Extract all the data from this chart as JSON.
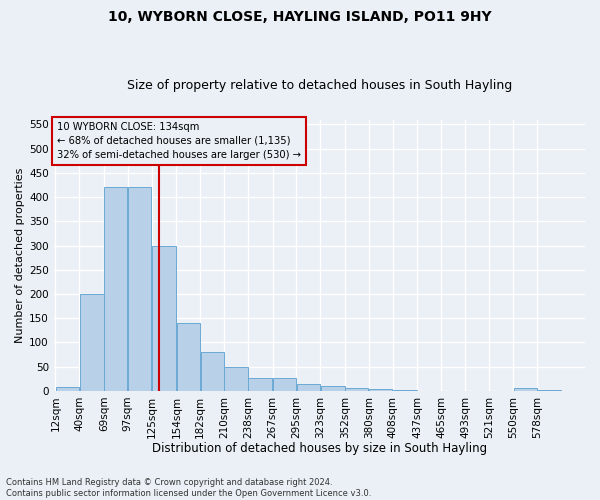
{
  "title": "10, WYBORN CLOSE, HAYLING ISLAND, PO11 9HY",
  "subtitle": "Size of property relative to detached houses in South Hayling",
  "xlabel": "Distribution of detached houses by size in South Hayling",
  "ylabel": "Number of detached properties",
  "footnote1": "Contains HM Land Registry data © Crown copyright and database right 2024.",
  "footnote2": "Contains public sector information licensed under the Open Government Licence v3.0.",
  "annotation_line1": "10 WYBORN CLOSE: 134sqm",
  "annotation_line2": "← 68% of detached houses are smaller (1,135)",
  "annotation_line3": "32% of semi-detached houses are larger (530) →",
  "bar_color": "#b8d0e8",
  "bar_edge_color": "#6aaad4",
  "vline_color": "#cc0000",
  "vline_x": 134,
  "categories": [
    "12sqm",
    "40sqm",
    "69sqm",
    "97sqm",
    "125sqm",
    "154sqm",
    "182sqm",
    "210sqm",
    "238sqm",
    "267sqm",
    "295sqm",
    "323sqm",
    "352sqm",
    "380sqm",
    "408sqm",
    "437sqm",
    "465sqm",
    "493sqm",
    "521sqm",
    "550sqm",
    "578sqm"
  ],
  "bin_edges": [
    12,
    40,
    69,
    97,
    125,
    154,
    182,
    210,
    238,
    267,
    295,
    323,
    352,
    380,
    408,
    437,
    465,
    493,
    521,
    550,
    578,
    606
  ],
  "values": [
    8,
    200,
    420,
    420,
    300,
    140,
    80,
    50,
    27,
    27,
    15,
    10,
    5,
    3,
    2,
    0,
    0,
    0,
    0,
    5,
    2
  ],
  "ylim": [
    0,
    560
  ],
  "yticks": [
    0,
    50,
    100,
    150,
    200,
    250,
    300,
    350,
    400,
    450,
    500,
    550
  ],
  "background_color": "#eaf0f6",
  "grid_color": "#ffffff",
  "title_fontsize": 10,
  "subtitle_fontsize": 9,
  "ylabel_fontsize": 8,
  "xlabel_fontsize": 8.5,
  "tick_fontsize": 7.5,
  "footnote_fontsize": 6
}
